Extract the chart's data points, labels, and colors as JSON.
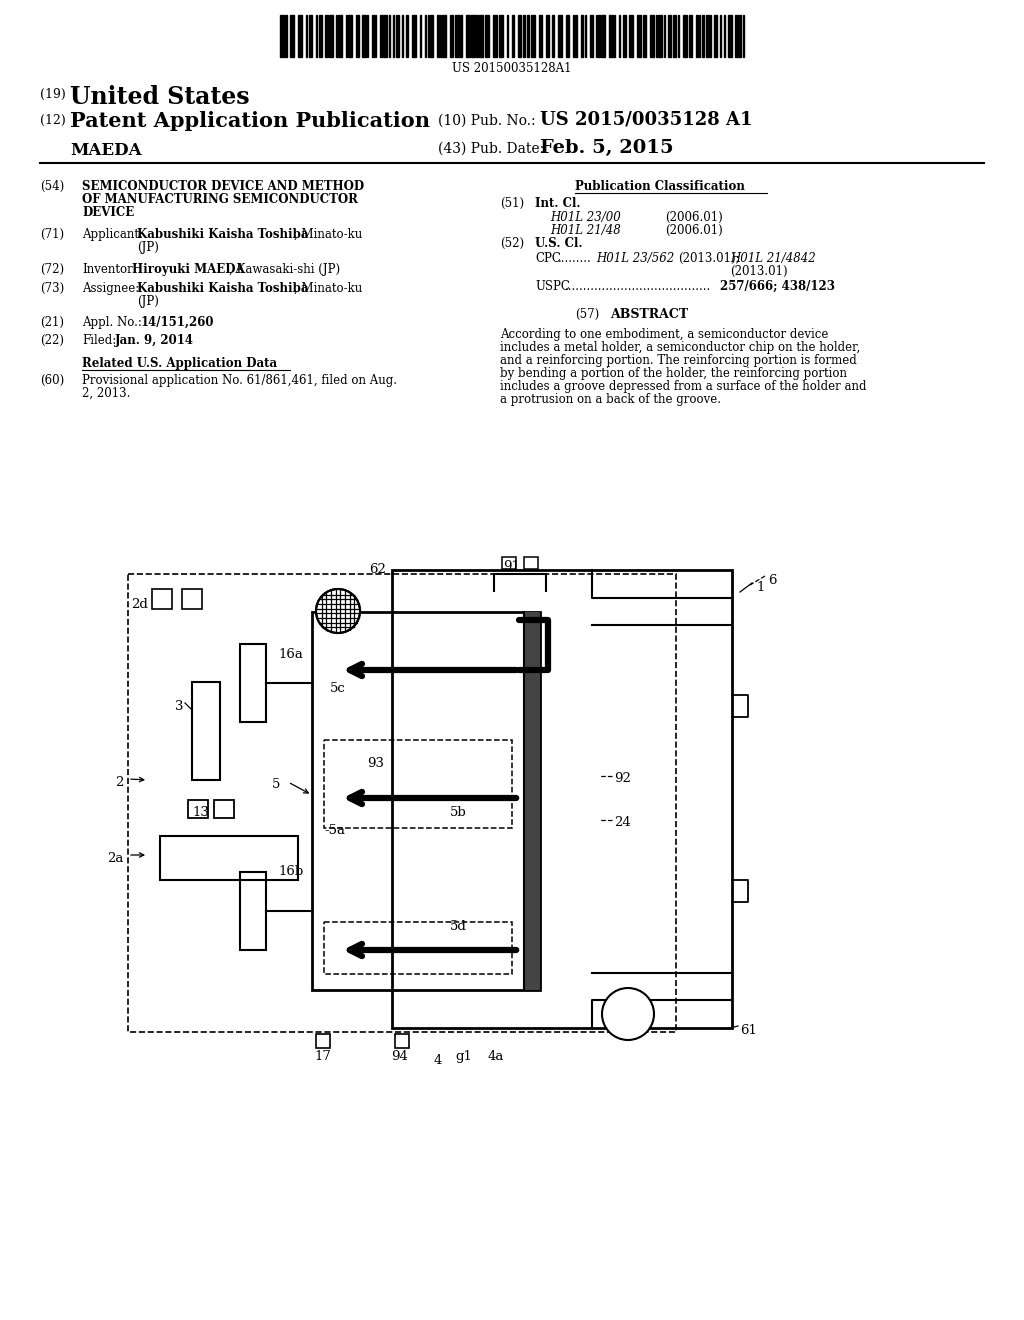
{
  "background_color": "#ffffff",
  "barcode_text": "US 20150035128A1",
  "header": {
    "country_num": "(19)",
    "country": "United States",
    "type_num": "(12)",
    "type": "Patent Application Publication",
    "inventor": "MAEDA",
    "pub_num_label": "(10) Pub. No.:",
    "pub_num": "US 2015/0035128 A1",
    "date_label": "(43) Pub. Date:",
    "date": "Feb. 5, 2015"
  },
  "left_fields": [
    {
      "num": "(54)",
      "label": "",
      "bold_text": "SEMICONDUCTOR DEVICE AND METHOD\nOF MANUFACTURING SEMICONDUCTOR\nDEVICE",
      "normal_text": ""
    },
    {
      "num": "(71)",
      "label": "Applicant:",
      "bold_text": "Kabushiki Kaisha Toshiba",
      "normal_text": ", Minato-ku\n(JP)"
    },
    {
      "num": "(72)",
      "label": "Inventor:  ",
      "bold_text": "Hiroyuki MAEDA",
      "normal_text": ", Kawasaki-shi (JP)"
    },
    {
      "num": "(73)",
      "label": "Assignee:",
      "bold_text": "Kabushiki Kaisha Toshiba",
      "normal_text": ", Minato-ku\n(JP)"
    },
    {
      "num": "(21)",
      "label": "Appl. No.:",
      "bold_text": "14/151,260",
      "normal_text": ""
    },
    {
      "num": "(22)",
      "label": "Filed:",
      "bold_text": "Jan. 9, 2014",
      "normal_text": ""
    }
  ],
  "related_title": "Related U.S. Application Data",
  "related_num": "(60)",
  "related_text": "Provisional application No. 61/861,461, filed on Aug.\n2, 2013.",
  "class_title": "Publication Classification",
  "int_cl_num": "(51)",
  "int_cl_label": "Int. Cl.",
  "int_cl_entries": [
    {
      "code": "H01L 23/00",
      "year": "(2006.01)"
    },
    {
      "code": "H01L 21/48",
      "year": "(2006.01)"
    }
  ],
  "us_cl_num": "(52)",
  "us_cl_label": "U.S. Cl.",
  "cpc_text1": "H01L 23/562",
  "cpc_year1": "(2013.01);",
  "cpc_text2": "H01L 21/4842",
  "cpc_year2": "(2013.01)",
  "uspc_text": "257/666; 438/123",
  "abstract_num": "(57)",
  "abstract_title": "ABSTRACT",
  "abstract_text": "According to one embodiment, a semiconductor device\nincludes a metal holder, a semiconductor chip on the holder,\nand a reinforcing portion. The reinforcing portion is formed\nby bending a portion of the holder, the reinforcing portion\nincludes a groove depressed from a surface of the holder and\na protrusion on a back of the groove."
}
